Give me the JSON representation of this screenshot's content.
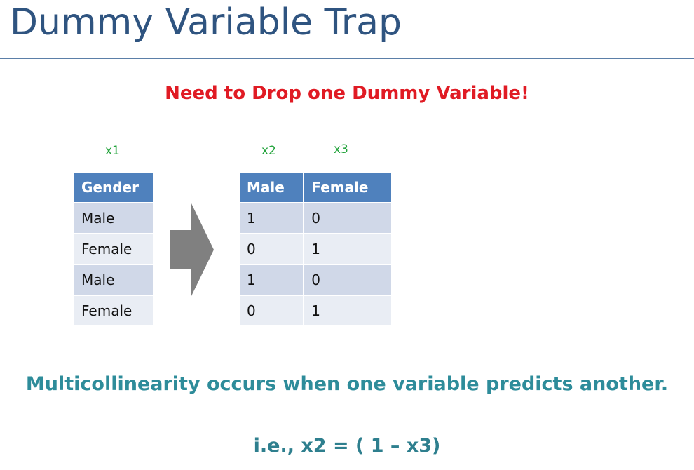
{
  "slide": {
    "title": "Dummy Variable Trap",
    "subtitle": "Need to Drop one Dummy Variable!",
    "statement": "Multicollinearity occurs when one variable predicts another.",
    "formula": "i.e., x2 = ( 1 – x3)"
  },
  "labels": {
    "x1": "x1",
    "x2": "x2",
    "x3": "x3"
  },
  "gender_table": {
    "header": "Gender",
    "rows": [
      "Male",
      "Female",
      "Male",
      "Female"
    ]
  },
  "dummy_table": {
    "headers": [
      "Male",
      "Female"
    ],
    "rows": [
      [
        "1",
        "0"
      ],
      [
        "0",
        "1"
      ],
      [
        "1",
        "0"
      ],
      [
        "0",
        "1"
      ]
    ]
  },
  "colors": {
    "title": "#2f5480",
    "subtitle": "#e01b24",
    "var_label": "#22a33b",
    "table_header": "#4f81bd",
    "row_odd": "#d0d8e8",
    "row_even": "#e9edf4",
    "arrow": "#808080",
    "statement": "#2e8c9a"
  },
  "icons": {
    "arrow": "right-arrow-icon"
  }
}
